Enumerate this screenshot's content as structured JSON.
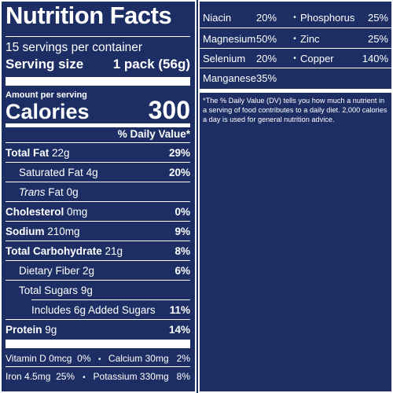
{
  "header": {
    "title": "Nutrition Facts",
    "servings": "15 servings per container",
    "serving_size_label": "Serving size",
    "serving_size_value": "1 pack (56g)"
  },
  "calories": {
    "amount_per_serving": "Amount per serving",
    "label": "Calories",
    "value": "300"
  },
  "daily_value_header": "% Daily Value*",
  "nutrients": [
    {
      "name": "Total Fat",
      "amount": "22g",
      "pct": "29%"
    },
    {
      "name": "Saturated Fat",
      "amount": "4g",
      "pct": "20%"
    },
    {
      "name": "Trans",
      "name_suffix": "Fat",
      "amount": "0g",
      "pct": ""
    },
    {
      "name": "Cholesterol",
      "amount": "0mg",
      "pct": "0%"
    },
    {
      "name": "Sodium",
      "amount": "210mg",
      "pct": "9%"
    },
    {
      "name": "Total Carbohydrate",
      "amount": "21g",
      "pct": "8%"
    },
    {
      "name": "Dietary Fiber",
      "amount": "2g",
      "pct": "6%"
    },
    {
      "name": "Total Sugars",
      "amount": "9g",
      "pct": ""
    },
    {
      "name": "Includes 6g Added Sugars",
      "amount": "",
      "pct": "11%"
    },
    {
      "name": "Protein",
      "amount": "9g",
      "pct": "14%"
    }
  ],
  "vitamins": [
    {
      "name": "Vitamin D",
      "amount": "0mcg",
      "pct": "0%"
    },
    {
      "name": "Calcium",
      "amount": "30mg",
      "pct": "2%"
    },
    {
      "name": "Iron",
      "amount": "4.5mg",
      "pct": "25%"
    },
    {
      "name": "Potassium",
      "amount": "330mg",
      "pct": "8%"
    }
  ],
  "minerals": [
    {
      "a": "Niacin",
      "ap": "20%",
      "b": "Phosphorus",
      "bp": "25%"
    },
    {
      "a": "Magnesium",
      "ap": "50%",
      "b": "Zinc",
      "bp": "25%"
    },
    {
      "a": "Selenium",
      "ap": "20%",
      "b": "Copper",
      "bp": "140%"
    },
    {
      "a": "Manganese",
      "ap": "35%",
      "b": "",
      "bp": ""
    }
  ],
  "bullet": "•",
  "footnote": "*The % Daily Value (DV) tells you how much a nutrient in a serving of food contributes to a daily diet. 2,000 calories a day is used for general nutrition advice.",
  "colors": {
    "label_bg": "#1c2e63",
    "text": "#ffffff"
  }
}
